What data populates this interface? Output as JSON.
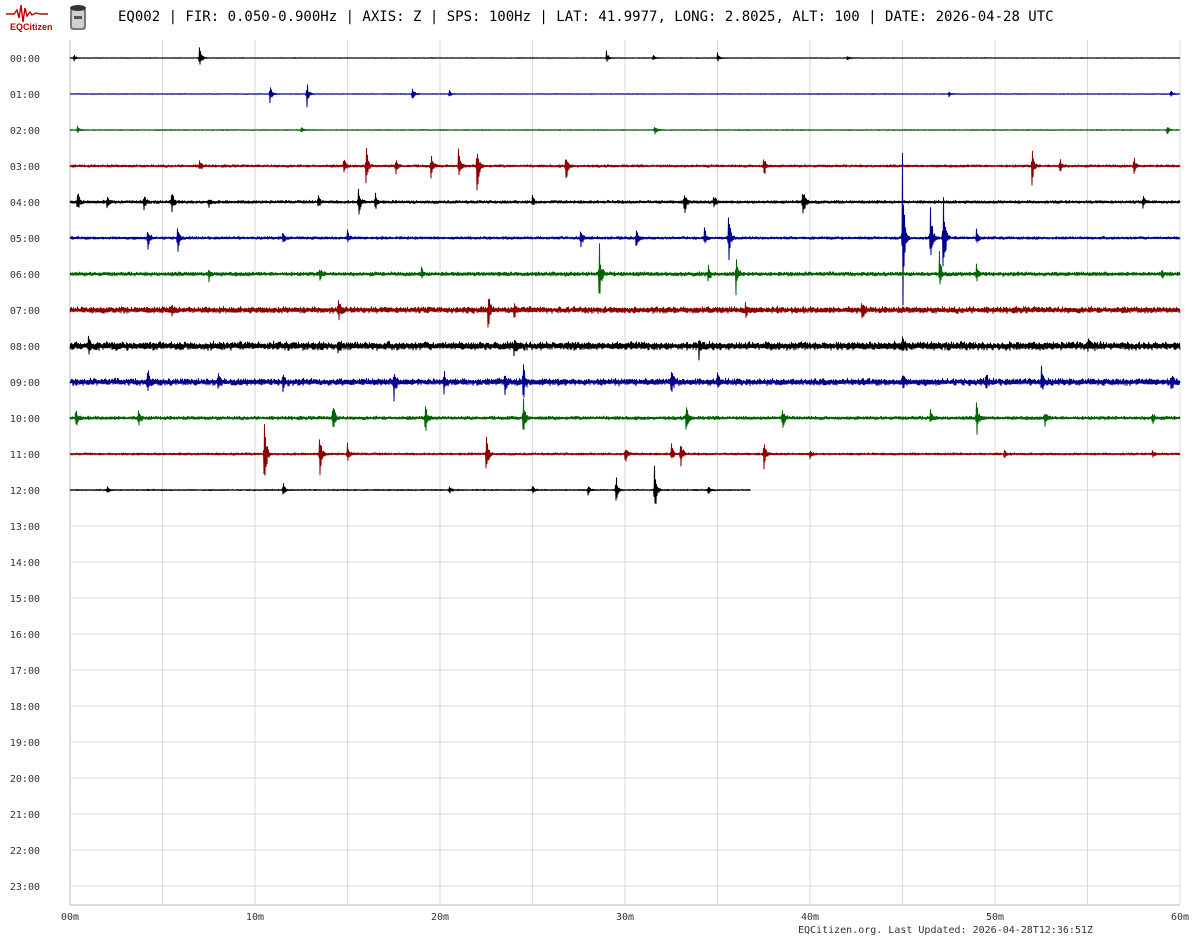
{
  "header": {
    "logo_label": "EQCitizen",
    "title": "EQ002 | FIR: 0.050-0.900Hz | AXIS: Z | SPS: 100Hz | LAT: 41.9977, LONG: 2.8025, ALT: 100 | DATE: 2026-04-28 UTC"
  },
  "footer": {
    "text": "EQCitizen.org. Last Updated: 2026-04-28T12:36:51Z"
  },
  "colors": {
    "trace_cycle": [
      "#000000",
      "#00008b",
      "#006400",
      "#8b0000"
    ],
    "grid": "#d9d9d9",
    "logo": "#c00000"
  },
  "chart_data": {
    "type": "line",
    "title": "",
    "xlabel": "",
    "ylabel": "",
    "xlim": [
      0,
      60
    ],
    "x_ticks": [
      "00m",
      "10m",
      "20m",
      "30m",
      "40m",
      "50m",
      "60m"
    ],
    "grid": true,
    "rows": [
      {
        "hour": "00:00",
        "end_minute": 60,
        "noise": 0.3,
        "events": [
          [
            0.2,
            4
          ],
          [
            7.0,
            18
          ],
          [
            29.0,
            7
          ],
          [
            31.5,
            4
          ],
          [
            35.0,
            5
          ],
          [
            42.0,
            3
          ]
        ]
      },
      {
        "hour": "01:00",
        "end_minute": 60,
        "noise": 0.3,
        "events": [
          [
            10.8,
            12
          ],
          [
            12.8,
            16
          ],
          [
            18.5,
            9
          ],
          [
            20.5,
            4
          ],
          [
            47.5,
            3
          ],
          [
            59.5,
            4
          ]
        ]
      },
      {
        "hour": "02:00",
        "end_minute": 60,
        "noise": 0.4,
        "events": [
          [
            0.4,
            4
          ],
          [
            12.5,
            3
          ],
          [
            31.6,
            6
          ],
          [
            59.3,
            5
          ]
        ]
      },
      {
        "hour": "03:00",
        "end_minute": 60,
        "noise": 1.0,
        "events": [
          [
            7.0,
            8
          ],
          [
            14.8,
            10
          ],
          [
            16.0,
            30
          ],
          [
            17.6,
            10
          ],
          [
            19.5,
            15
          ],
          [
            21.0,
            20
          ],
          [
            22.0,
            35
          ],
          [
            26.8,
            20
          ],
          [
            37.5,
            15
          ],
          [
            52.0,
            20
          ],
          [
            53.5,
            10
          ],
          [
            57.5,
            12
          ]
        ]
      },
      {
        "hour": "04:00",
        "end_minute": 60,
        "noise": 1.2,
        "events": [
          [
            0.4,
            15
          ],
          [
            2.0,
            6
          ],
          [
            4.0,
            10
          ],
          [
            5.5,
            15
          ],
          [
            7.5,
            6
          ],
          [
            13.4,
            10
          ],
          [
            15.6,
            18
          ],
          [
            16.5,
            10
          ],
          [
            25.0,
            6
          ],
          [
            33.2,
            18
          ],
          [
            34.8,
            10
          ],
          [
            39.6,
            25
          ],
          [
            58.0,
            6
          ]
        ]
      },
      {
        "hour": "05:00",
        "end_minute": 60,
        "noise": 1.1,
        "events": [
          [
            4.2,
            15
          ],
          [
            5.8,
            20
          ],
          [
            11.5,
            10
          ],
          [
            15.0,
            8
          ],
          [
            27.6,
            18
          ],
          [
            30.6,
            12
          ],
          [
            34.3,
            12
          ],
          [
            35.6,
            30
          ],
          [
            45.0,
            92
          ],
          [
            46.5,
            50
          ],
          [
            47.2,
            70
          ],
          [
            49.0,
            12
          ]
        ]
      },
      {
        "hour": "06:00",
        "end_minute": 60,
        "noise": 1.6,
        "events": [
          [
            7.5,
            10
          ],
          [
            13.5,
            8
          ],
          [
            19.0,
            8
          ],
          [
            28.6,
            45
          ],
          [
            34.5,
            12
          ],
          [
            36.0,
            22
          ],
          [
            47.0,
            22
          ],
          [
            49.0,
            10
          ],
          [
            59.0,
            6
          ]
        ]
      },
      {
        "hour": "07:00",
        "end_minute": 60,
        "noise": 2.6,
        "events": [
          [
            5.5,
            8
          ],
          [
            14.5,
            12
          ],
          [
            22.6,
            22
          ],
          [
            24.0,
            10
          ],
          [
            36.5,
            10
          ],
          [
            42.8,
            12
          ]
        ]
      },
      {
        "hour": "08:00",
        "end_minute": 60,
        "noise": 3.4,
        "events": [
          [
            1.0,
            10
          ],
          [
            14.5,
            8
          ],
          [
            24.0,
            10
          ],
          [
            34.0,
            12
          ],
          [
            45.0,
            8
          ],
          [
            55.0,
            6
          ]
        ]
      },
      {
        "hour": "09:00",
        "end_minute": 60,
        "noise": 2.8,
        "events": [
          [
            4.2,
            16
          ],
          [
            8.0,
            12
          ],
          [
            11.5,
            10
          ],
          [
            17.5,
            22
          ],
          [
            20.2,
            14
          ],
          [
            23.5,
            12
          ],
          [
            24.5,
            28
          ],
          [
            32.5,
            18
          ],
          [
            35.0,
            10
          ],
          [
            45.0,
            10
          ],
          [
            49.5,
            10
          ],
          [
            52.5,
            18
          ],
          [
            59.5,
            10
          ]
        ]
      },
      {
        "hour": "10:00",
        "end_minute": 60,
        "noise": 1.4,
        "events": [
          [
            0.3,
            14
          ],
          [
            3.7,
            10
          ],
          [
            14.2,
            22
          ],
          [
            19.2,
            20
          ],
          [
            24.5,
            25
          ],
          [
            33.3,
            20
          ],
          [
            38.5,
            15
          ],
          [
            46.5,
            10
          ],
          [
            49.0,
            22
          ],
          [
            52.7,
            10
          ],
          [
            58.5,
            8
          ]
        ]
      },
      {
        "hour": "11:00",
        "end_minute": 60,
        "noise": 0.9,
        "events": [
          [
            10.5,
            55
          ],
          [
            13.5,
            30
          ],
          [
            15.0,
            12
          ],
          [
            22.5,
            30
          ],
          [
            30.0,
            12
          ],
          [
            32.5,
            12
          ],
          [
            33.0,
            20
          ],
          [
            37.5,
            20
          ],
          [
            40.0,
            6
          ],
          [
            50.5,
            5
          ],
          [
            58.5,
            5
          ]
        ]
      },
      {
        "hour": "12:00",
        "end_minute": 36.8,
        "noise": 0.5,
        "events": [
          [
            2.0,
            4
          ],
          [
            11.5,
            10
          ],
          [
            20.5,
            5
          ],
          [
            25.0,
            5
          ],
          [
            28.0,
            6
          ],
          [
            29.5,
            20
          ],
          [
            31.6,
            42
          ],
          [
            34.5,
            6
          ]
        ]
      },
      {
        "hour": "13:00",
        "end_minute": 0,
        "noise": 0,
        "events": []
      },
      {
        "hour": "14:00",
        "end_minute": 0,
        "noise": 0,
        "events": []
      },
      {
        "hour": "15:00",
        "end_minute": 0,
        "noise": 0,
        "events": []
      },
      {
        "hour": "16:00",
        "end_minute": 0,
        "noise": 0,
        "events": []
      },
      {
        "hour": "17:00",
        "end_minute": 0,
        "noise": 0,
        "events": []
      },
      {
        "hour": "18:00",
        "end_minute": 0,
        "noise": 0,
        "events": []
      },
      {
        "hour": "19:00",
        "end_minute": 0,
        "noise": 0,
        "events": []
      },
      {
        "hour": "20:00",
        "end_minute": 0,
        "noise": 0,
        "events": []
      },
      {
        "hour": "21:00",
        "end_minute": 0,
        "noise": 0,
        "events": []
      },
      {
        "hour": "22:00",
        "end_minute": 0,
        "noise": 0,
        "events": []
      },
      {
        "hour": "23:00",
        "end_minute": 0,
        "noise": 0,
        "events": []
      }
    ]
  }
}
